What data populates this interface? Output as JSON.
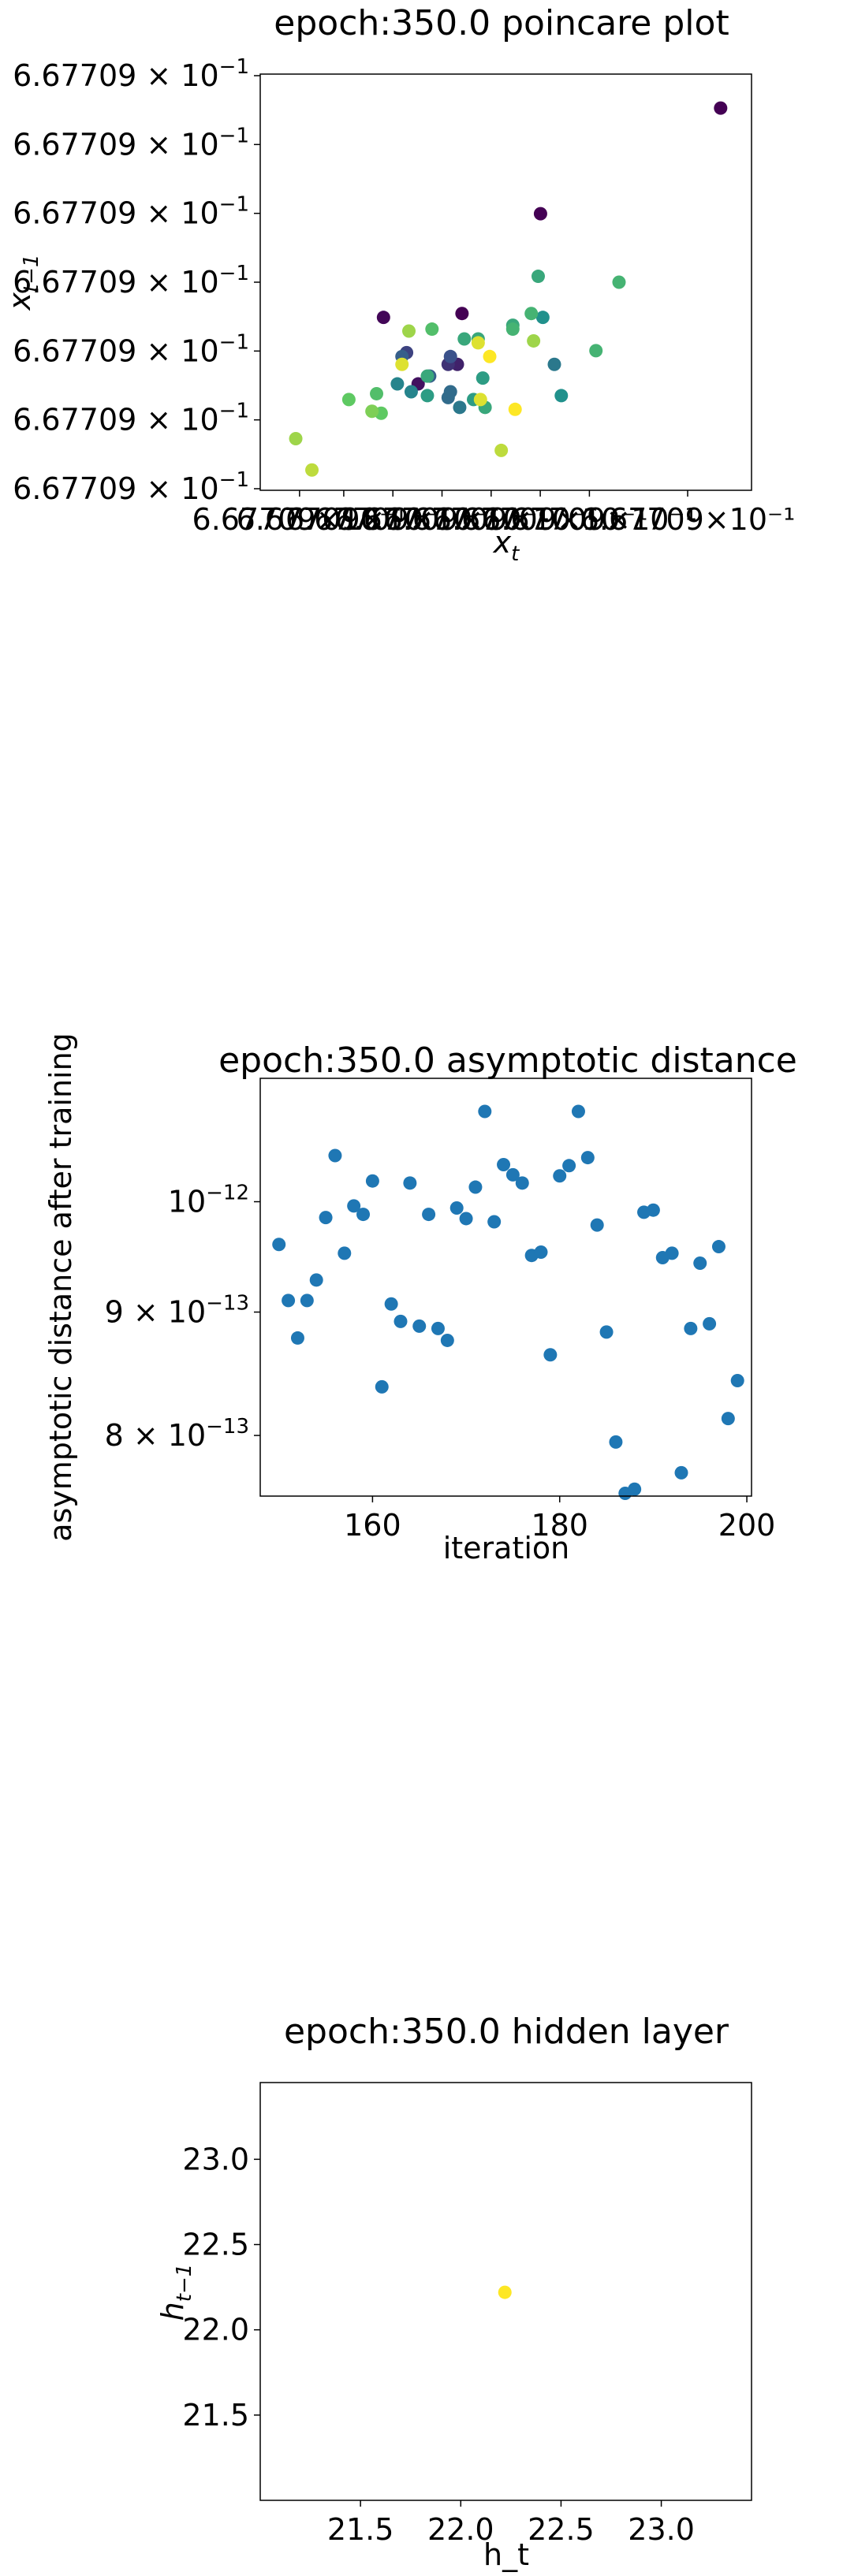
{
  "charts": [
    {
      "type": "scatter",
      "title": "epoch:350.0 poincare plot",
      "xlabel_base": "x",
      "xlabel_sub": "t",
      "ylabel_base": "x",
      "ylabel_sub": "t−1",
      "ytick_mantissa": "6.67709",
      "ytick_times": "×",
      "ytick_base": "10",
      "ytick_exponent": "−1",
      "ytick_count": 7,
      "xtick_text": "6.67709×10⁻¹",
      "xtick_count": 8,
      "colormap": "viridis",
      "colors": [
        "#440154",
        "#3b528b",
        "#21918c",
        "#5ec962",
        "#fde725"
      ],
      "scale": "linear",
      "grid": false,
      "legend": "none"
    },
    {
      "type": "scatter",
      "title": "epoch:350.0 asymptotic distance",
      "xlabel": "iteration",
      "ylabel": "asymptotic distance after training",
      "xticks": [
        "160",
        "180",
        "200"
      ],
      "yticks": [
        {
          "mantissa": "",
          "times": "",
          "base": "10",
          "exp": "−12"
        },
        {
          "mantissa": "9",
          "times": "×",
          "base": "10",
          "exp": "−13"
        },
        {
          "mantissa": "8",
          "times": "×",
          "base": "10",
          "exp": "−13"
        }
      ],
      "xlim": [
        148,
        200.5
      ],
      "ylim": [
        7.55e-13,
        1.125e-12
      ],
      "yscale": "log",
      "color": "#1f77b4",
      "grid": false,
      "legend": "none"
    },
    {
      "type": "scatter",
      "title": "epoch:350.0 hidden layer",
      "xlabel": "h_t",
      "ylabel_base": "h",
      "ylabel_sub": "t−1",
      "xticks": [
        "21.5",
        "22.0",
        "22.5",
        "23.0"
      ],
      "yticks": [
        "23.0",
        "22.5",
        "22.0",
        "21.5"
      ],
      "xlim": [
        21.0,
        23.45
      ],
      "ylim": [
        21.0,
        23.45
      ],
      "color": "#fde725",
      "grid": false,
      "legend": "none"
    }
  ],
  "chart_data": [
    {
      "type": "scatter",
      "title": "epoch:350.0 poincare plot",
      "xlabel": "x_t",
      "ylabel": "x_{t-1}",
      "note_values": "all tick labels read 6.67709×10⁻¹; points are relative positions in the chart's own units (0-1 across each axis)",
      "points": [
        {
          "x": 0.965,
          "y": 0.945,
          "c": 0.0
        },
        {
          "x": 0.575,
          "y": 0.675,
          "c": 0.0
        },
        {
          "x": 0.405,
          "y": 0.42,
          "c": 0.0
        },
        {
          "x": 0.235,
          "y": 0.41,
          "c": 0.02
        },
        {
          "x": 0.31,
          "y": 0.24,
          "c": 0.05
        },
        {
          "x": 0.395,
          "y": 0.29,
          "c": 0.1
        },
        {
          "x": 0.375,
          "y": 0.29,
          "c": 0.15
        },
        {
          "x": 0.285,
          "y": 0.32,
          "c": 0.2
        },
        {
          "x": 0.38,
          "y": 0.31,
          "c": 0.25
        },
        {
          "x": 0.335,
          "y": 0.26,
          "c": 0.3
        },
        {
          "x": 0.275,
          "y": 0.31,
          "c": 0.3
        },
        {
          "x": 0.375,
          "y": 0.205,
          "c": 0.35
        },
        {
          "x": 0.4,
          "y": 0.18,
          "c": 0.4
        },
        {
          "x": 0.38,
          "y": 0.22,
          "c": 0.35
        },
        {
          "x": 0.605,
          "y": 0.29,
          "c": 0.4
        },
        {
          "x": 0.265,
          "y": 0.24,
          "c": 0.45
        },
        {
          "x": 0.295,
          "y": 0.22,
          "c": 0.45
        },
        {
          "x": 0.62,
          "y": 0.21,
          "c": 0.5
        },
        {
          "x": 0.58,
          "y": 0.41,
          "c": 0.5
        },
        {
          "x": 0.45,
          "y": 0.255,
          "c": 0.55
        },
        {
          "x": 0.43,
          "y": 0.2,
          "c": 0.55
        },
        {
          "x": 0.44,
          "y": 0.355,
          "c": 0.6
        },
        {
          "x": 0.41,
          "y": 0.355,
          "c": 0.6
        },
        {
          "x": 0.33,
          "y": 0.21,
          "c": 0.55
        },
        {
          "x": 0.33,
          "y": 0.26,
          "c": 0.6
        },
        {
          "x": 0.515,
          "y": 0.39,
          "c": 0.6
        },
        {
          "x": 0.455,
          "y": 0.18,
          "c": 0.6
        },
        {
          "x": 0.555,
          "y": 0.42,
          "c": 0.65
        },
        {
          "x": 0.57,
          "y": 0.515,
          "c": 0.6
        },
        {
          "x": 0.515,
          "y": 0.38,
          "c": 0.65
        },
        {
          "x": 0.745,
          "y": 0.5,
          "c": 0.65
        },
        {
          "x": 0.695,
          "y": 0.325,
          "c": 0.65
        },
        {
          "x": 0.34,
          "y": 0.38,
          "c": 0.7
        },
        {
          "x": 0.22,
          "y": 0.215,
          "c": 0.7
        },
        {
          "x": 0.23,
          "y": 0.165,
          "c": 0.75
        },
        {
          "x": 0.16,
          "y": 0.2,
          "c": 0.75
        },
        {
          "x": 0.21,
          "y": 0.17,
          "c": 0.8
        },
        {
          "x": 0.56,
          "y": 0.35,
          "c": 0.85
        },
        {
          "x": 0.29,
          "y": 0.375,
          "c": 0.85
        },
        {
          "x": 0.045,
          "y": 0.1,
          "c": 0.85
        },
        {
          "x": 0.08,
          "y": 0.02,
          "c": 0.9
        },
        {
          "x": 0.49,
          "y": 0.07,
          "c": 0.9
        },
        {
          "x": 0.275,
          "y": 0.29,
          "c": 0.95
        },
        {
          "x": 0.44,
          "y": 0.345,
          "c": 0.95
        },
        {
          "x": 0.445,
          "y": 0.2,
          "c": 0.95
        },
        {
          "x": 0.465,
          "y": 0.31,
          "c": 1.0
        },
        {
          "x": 0.52,
          "y": 0.175,
          "c": 1.0
        }
      ]
    },
    {
      "type": "scatter",
      "title": "epoch:350.0 asymptotic distance",
      "xlabel": "iteration",
      "ylabel": "asymptotic distance after training",
      "yscale": "log",
      "xlim": [
        148,
        200.5
      ],
      "ylim": [
        7.55e-13,
        1.125e-12
      ],
      "points": [
        {
          "x": 150,
          "y": 9.6e-13
        },
        {
          "x": 151,
          "y": 9.1e-13
        },
        {
          "x": 152,
          "y": 8.78e-13
        },
        {
          "x": 153,
          "y": 9.1e-13
        },
        {
          "x": 154,
          "y": 9.28e-13
        },
        {
          "x": 155,
          "y": 9.85e-13
        },
        {
          "x": 156,
          "y": 1.045e-12
        },
        {
          "x": 157,
          "y": 9.52e-13
        },
        {
          "x": 158,
          "y": 9.96e-13
        },
        {
          "x": 159,
          "y": 9.88e-13
        },
        {
          "x": 160,
          "y": 1.02e-12
        },
        {
          "x": 161,
          "y": 8.38e-13
        },
        {
          "x": 162,
          "y": 9.07e-13
        },
        {
          "x": 163,
          "y": 8.92e-13
        },
        {
          "x": 164,
          "y": 1.018e-12
        },
        {
          "x": 165,
          "y": 8.88e-13
        },
        {
          "x": 166,
          "y": 9.88e-13
        },
        {
          "x": 167,
          "y": 8.86e-13
        },
        {
          "x": 168,
          "y": 8.76e-13
        },
        {
          "x": 169,
          "y": 9.94e-13
        },
        {
          "x": 170,
          "y": 9.84e-13
        },
        {
          "x": 171,
          "y": 1.014e-12
        },
        {
          "x": 172,
          "y": 1.09e-12
        },
        {
          "x": 173,
          "y": 9.81e-13
        },
        {
          "x": 174,
          "y": 1.036e-12
        },
        {
          "x": 175,
          "y": 1.026e-12
        },
        {
          "x": 176,
          "y": 1.018e-12
        },
        {
          "x": 177,
          "y": 9.5e-13
        },
        {
          "x": 178,
          "y": 9.53e-13
        },
        {
          "x": 179,
          "y": 8.64e-13
        },
        {
          "x": 180,
          "y": 1.025e-12
        },
        {
          "x": 181,
          "y": 1.035e-12
        },
        {
          "x": 182,
          "y": 1.09e-12
        },
        {
          "x": 183,
          "y": 1.043e-12
        },
        {
          "x": 184,
          "y": 9.78e-13
        },
        {
          "x": 185,
          "y": 8.83e-13
        },
        {
          "x": 186,
          "y": 7.95e-13
        },
        {
          "x": 187,
          "y": 7.57e-13
        },
        {
          "x": 188,
          "y": 7.6e-13
        },
        {
          "x": 189,
          "y": 9.9e-13
        },
        {
          "x": 190,
          "y": 9.92e-13
        },
        {
          "x": 191,
          "y": 9.48e-13
        },
        {
          "x": 192,
          "y": 9.52e-13
        },
        {
          "x": 193,
          "y": 7.72e-13
        },
        {
          "x": 194,
          "y": 8.86e-13
        },
        {
          "x": 195,
          "y": 9.43e-13
        },
        {
          "x": 196,
          "y": 8.9e-13
        },
        {
          "x": 197,
          "y": 9.58e-13
        },
        {
          "x": 198,
          "y": 8.13e-13
        },
        {
          "x": 199,
          "y": 8.43e-13
        }
      ]
    },
    {
      "type": "scatter",
      "title": "epoch:350.0 hidden layer",
      "xlabel": "h_t",
      "ylabel": "h_{t-1}",
      "xlim": [
        21.0,
        23.45
      ],
      "ylim": [
        21.0,
        23.45
      ],
      "points": [
        {
          "x": 22.22,
          "y": 22.22
        }
      ]
    }
  ]
}
